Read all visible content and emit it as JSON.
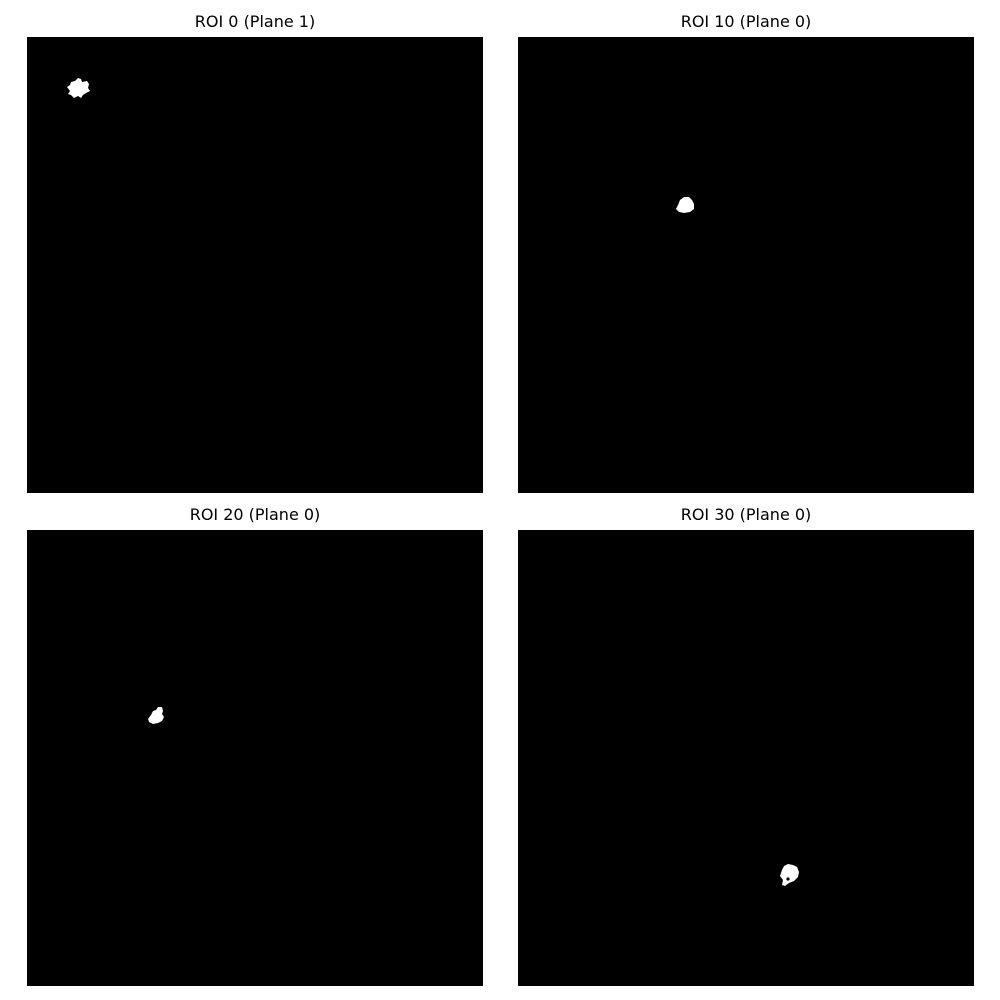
{
  "figure": {
    "background_color": "#ffffff",
    "mask_background_color": "#000000",
    "mask_foreground_color": "#ffffff",
    "panels": [
      {
        "title": "ROI 0 (Plane 1)"
      },
      {
        "title": "ROI 10 (Plane 0)"
      },
      {
        "title": "ROI 20 (Plane 0)"
      },
      {
        "title": "ROI 30 (Plane 0)"
      }
    ]
  }
}
